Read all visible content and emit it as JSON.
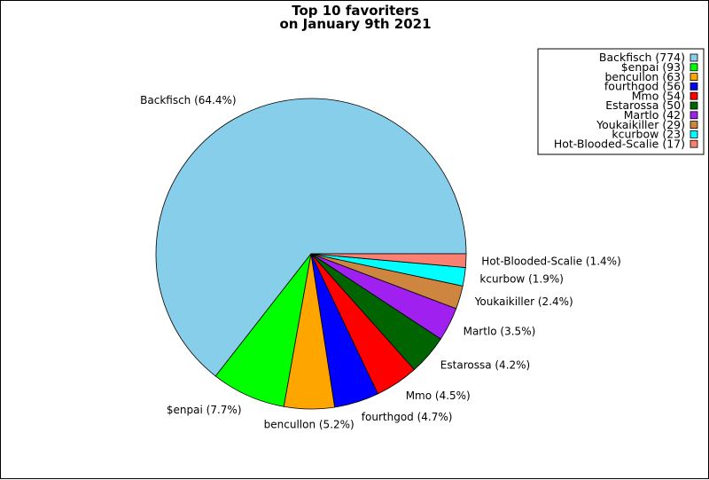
{
  "chart_data": {
    "type": "pie",
    "title_line1": "Top 10 favoriters",
    "title_line2": "on January 9th 2021",
    "legend_position": "top-right",
    "start_angle_deg": 0,
    "direction": "counterclockwise",
    "slices": [
      {
        "name": "Backfisch",
        "value": 774,
        "legend": "Backfisch (774)",
        "label": "Backfisch (64.4%)",
        "color": "#87ceeb"
      },
      {
        "name": "$enpai",
        "value": 93,
        "legend": "$enpai (93)",
        "label": "$enpai (7.7%)",
        "color": "#00ff00"
      },
      {
        "name": "bencullon",
        "value": 63,
        "legend": "bencullon (63)",
        "label": "bencullon (5.2%)",
        "color": "#ffa500"
      },
      {
        "name": "fourthgod",
        "value": 56,
        "legend": "fourthgod (56)",
        "label": "fourthgod (4.7%)",
        "color": "#0000ff"
      },
      {
        "name": "Mmo",
        "value": 54,
        "legend": "Mmo (54)",
        "label": "Mmo (4.5%)",
        "color": "#ff0000"
      },
      {
        "name": "Estarossa",
        "value": 50,
        "legend": "Estarossa (50)",
        "label": "Estarossa (4.2%)",
        "color": "#006400"
      },
      {
        "name": "Martlo",
        "value": 42,
        "legend": "Martlo (42)",
        "label": "Martlo (3.5%)",
        "color": "#a020f0"
      },
      {
        "name": "Youkaikiller",
        "value": 29,
        "legend": "Youkaikiller (29)",
        "label": "Youkaikiller (2.4%)",
        "color": "#cd853f"
      },
      {
        "name": "kcurbow",
        "value": 23,
        "legend": "kcurbow (23)",
        "label": "kcurbow (1.9%)",
        "color": "#00ffff"
      },
      {
        "name": "Hot-Blooded-Scalie",
        "value": 17,
        "legend": "Hot-Blooded-Scalie (17)",
        "label": "Hot-Blooded-Scalie (1.4%)",
        "color": "#fa8072"
      }
    ]
  }
}
